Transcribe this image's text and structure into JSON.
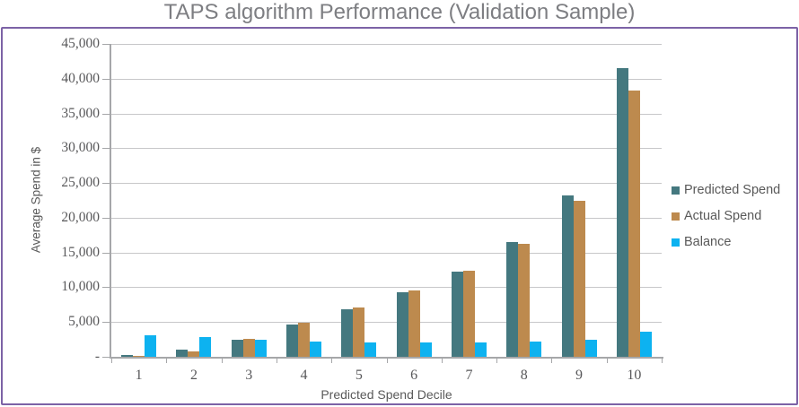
{
  "chart_data": {
    "type": "bar",
    "title": "TAPS algorithm Performance (Validation Sample)",
    "xlabel": "Predicted Spend Decile",
    "ylabel": "Average Spend in $",
    "categories": [
      "1",
      "2",
      "3",
      "4",
      "5",
      "6",
      "7",
      "8",
      "9",
      "10"
    ],
    "series": [
      {
        "name": "Predicted Spend",
        "color": "#44787f",
        "values": [
          250,
          1050,
          2450,
          4600,
          6800,
          9300,
          12300,
          16500,
          23200,
          41500
        ]
      },
      {
        "name": "Actual Spend",
        "color": "#bd8a4e",
        "values": [
          120,
          780,
          2550,
          4900,
          7100,
          9550,
          12400,
          16250,
          22450,
          38300
        ]
      },
      {
        "name": "Balance",
        "color": "#0db2f0",
        "values": [
          3050,
          2800,
          2450,
          2250,
          2100,
          2100,
          2100,
          2250,
          2400,
          3600
        ]
      }
    ],
    "ylim": [
      0,
      45000
    ],
    "ytick_interval": 5000,
    "y_tick_labels": [
      "45,000",
      "40,000",
      "35,000",
      "30,000",
      "25,000",
      "20,000",
      "15,000",
      "10,000",
      "5,000",
      "-"
    ],
    "grid": true,
    "legend_position": "right"
  },
  "colors": {
    "border": "#7c62a6",
    "axis": "#a6a7a9",
    "gridline": "#c7c7c9",
    "title_text": "#7d7e82",
    "label_text": "#595959"
  }
}
